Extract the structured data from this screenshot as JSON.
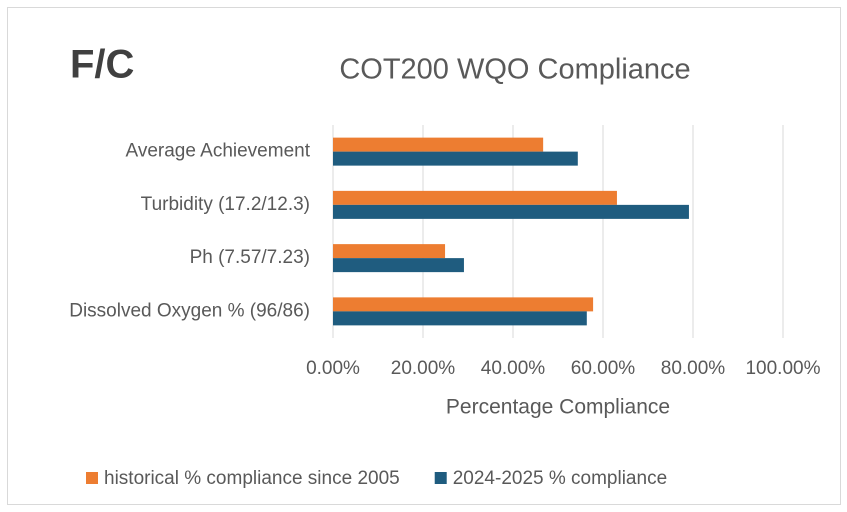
{
  "chart_data": {
    "type": "hbar",
    "annotation": "F/C",
    "title": "COT200 WQO Compliance",
    "x_label": "Percentage Compliance",
    "categories": [
      "Average Achievement",
      "Turbidity (17.2/12.3)",
      "Ph (7.57/7.23)",
      "Dissolved Oxygen % (96/86)"
    ],
    "series": [
      {
        "name": "historical % compliance since 2005",
        "color": "#ed7d31",
        "values": [
          46.7,
          63.1,
          24.9,
          57.8
        ]
      },
      {
        "name": "2024-2025 % compliance",
        "color": "#1f5c7f",
        "values": [
          54.4,
          79.1,
          29.1,
          56.4
        ]
      }
    ],
    "xlim": [
      0,
      100
    ],
    "xticks": [
      {
        "value": 0,
        "label": "0.00%"
      },
      {
        "value": 20,
        "label": "20.00%"
      },
      {
        "value": 40,
        "label": "40.00%"
      },
      {
        "value": 60,
        "label": "60.00%"
      },
      {
        "value": 80,
        "label": "80.00%"
      },
      {
        "value": 100,
        "label": "100.00%"
      }
    ],
    "grid": true,
    "legend": "bottom"
  }
}
